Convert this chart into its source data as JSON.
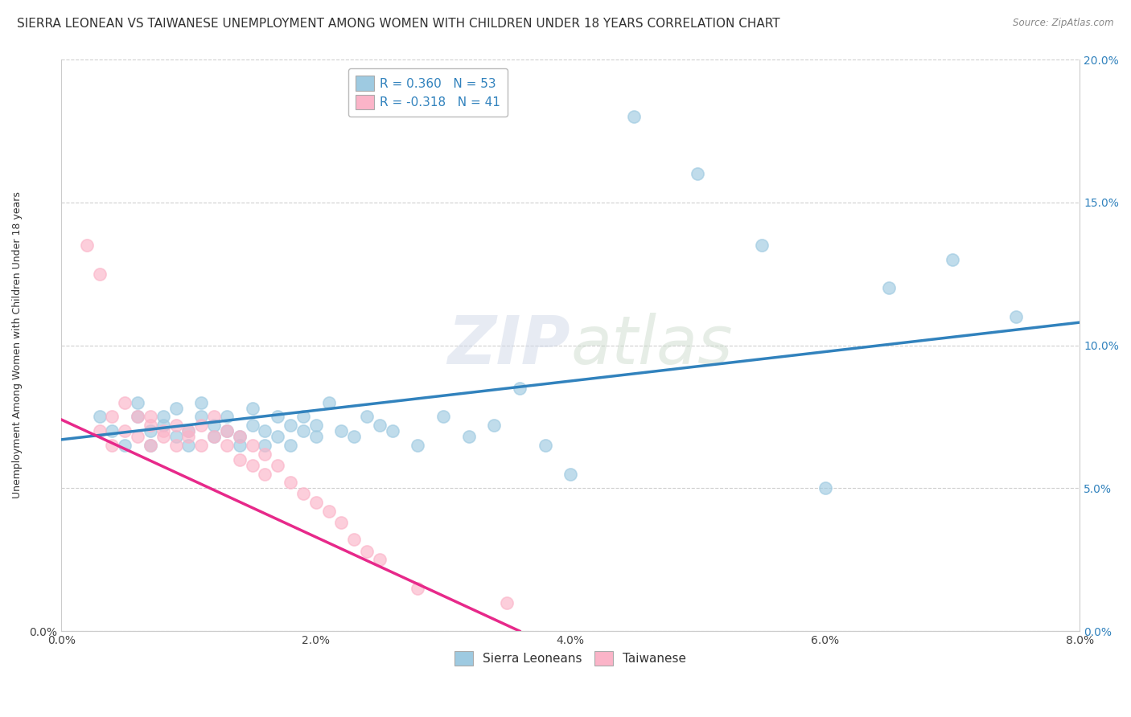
{
  "title": "SIERRA LEONEAN VS TAIWANESE UNEMPLOYMENT AMONG WOMEN WITH CHILDREN UNDER 18 YEARS CORRELATION CHART",
  "source": "Source: ZipAtlas.com",
  "ylabel": "Unemployment Among Women with Children Under 18 years",
  "watermark": "ZIPatlas",
  "legend_blue_R": "0.360",
  "legend_blue_N": "53",
  "legend_pink_R": "-0.318",
  "legend_pink_N": "41",
  "blue_color": "#9ecae1",
  "pink_color": "#fbb4c8",
  "blue_line_color": "#3182bd",
  "pink_line_color": "#e7298a",
  "xlim": [
    0.0,
    0.08
  ],
  "ylim": [
    0.0,
    0.2
  ],
  "yticks": [
    0.0,
    0.05,
    0.1,
    0.15,
    0.2
  ],
  "ytick_labels_left": [
    "0.0%",
    "",
    "",
    "",
    ""
  ],
  "ytick_labels_right": [
    "0.0%",
    "5.0%",
    "10.0%",
    "15.0%",
    "20.0%"
  ],
  "xticks": [
    0.0,
    0.02,
    0.04,
    0.06,
    0.08
  ],
  "xtick_labels": [
    "0.0%",
    "2.0%",
    "4.0%",
    "6.0%",
    "8.0%"
  ],
  "blue_scatter_x": [
    0.003,
    0.004,
    0.005,
    0.006,
    0.006,
    0.007,
    0.007,
    0.008,
    0.008,
    0.009,
    0.009,
    0.01,
    0.01,
    0.011,
    0.011,
    0.012,
    0.012,
    0.013,
    0.013,
    0.014,
    0.014,
    0.015,
    0.015,
    0.016,
    0.016,
    0.017,
    0.017,
    0.018,
    0.018,
    0.019,
    0.019,
    0.02,
    0.02,
    0.021,
    0.022,
    0.023,
    0.024,
    0.025,
    0.026,
    0.028,
    0.03,
    0.032,
    0.034,
    0.036,
    0.038,
    0.04,
    0.045,
    0.05,
    0.055,
    0.06,
    0.065,
    0.07,
    0.075
  ],
  "blue_scatter_y": [
    0.075,
    0.07,
    0.065,
    0.075,
    0.08,
    0.07,
    0.065,
    0.075,
    0.072,
    0.068,
    0.078,
    0.07,
    0.065,
    0.075,
    0.08,
    0.068,
    0.072,
    0.075,
    0.07,
    0.065,
    0.068,
    0.078,
    0.072,
    0.065,
    0.07,
    0.075,
    0.068,
    0.072,
    0.065,
    0.07,
    0.075,
    0.068,
    0.072,
    0.08,
    0.07,
    0.068,
    0.075,
    0.072,
    0.07,
    0.065,
    0.075,
    0.068,
    0.072,
    0.085,
    0.065,
    0.055,
    0.18,
    0.16,
    0.135,
    0.05,
    0.12,
    0.13,
    0.11
  ],
  "pink_scatter_x": [
    0.002,
    0.003,
    0.003,
    0.004,
    0.004,
    0.005,
    0.005,
    0.006,
    0.006,
    0.007,
    0.007,
    0.007,
    0.008,
    0.008,
    0.009,
    0.009,
    0.01,
    0.01,
    0.011,
    0.011,
    0.012,
    0.012,
    0.013,
    0.013,
    0.014,
    0.014,
    0.015,
    0.015,
    0.016,
    0.016,
    0.017,
    0.018,
    0.019,
    0.02,
    0.021,
    0.022,
    0.023,
    0.024,
    0.025,
    0.028,
    0.035
  ],
  "pink_scatter_y": [
    0.135,
    0.125,
    0.07,
    0.075,
    0.065,
    0.08,
    0.07,
    0.075,
    0.068,
    0.072,
    0.065,
    0.075,
    0.07,
    0.068,
    0.072,
    0.065,
    0.07,
    0.068,
    0.072,
    0.065,
    0.068,
    0.075,
    0.065,
    0.07,
    0.068,
    0.06,
    0.065,
    0.058,
    0.062,
    0.055,
    0.058,
    0.052,
    0.048,
    0.045,
    0.042,
    0.038,
    0.032,
    0.028,
    0.025,
    0.015,
    0.01
  ],
  "blue_line_x": [
    0.0,
    0.08
  ],
  "blue_line_y": [
    0.067,
    0.108
  ],
  "pink_line_x": [
    0.0,
    0.036
  ],
  "pink_line_y": [
    0.074,
    0.0
  ],
  "background_color": "#ffffff",
  "grid_color": "#bbbbbb",
  "title_fontsize": 11,
  "label_fontsize": 9,
  "tick_fontsize": 10,
  "legend_fontsize": 11
}
